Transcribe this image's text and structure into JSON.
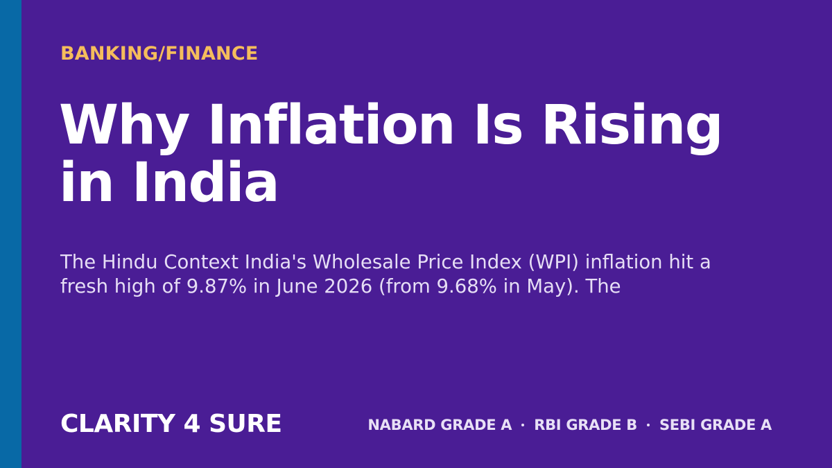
{
  "category": "BANKING/FINANCE",
  "title": "Why Inflation Is Rising in India",
  "description": "The Hindu Context India's Wholesale Price Index (WPI) inflation hit a fresh high of 9.87% in June 2026 (from 9.68% in May). The",
  "brand": "CLARITY 4 SURE",
  "exams": [
    "NABARD GRADE A",
    "RBI GRADE B",
    "SEBI GRADE A"
  ]
}
